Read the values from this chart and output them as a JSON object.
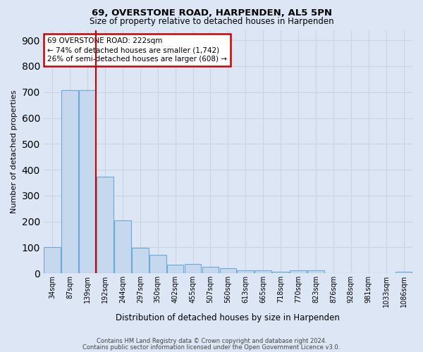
{
  "title1": "69, OVERSTONE ROAD, HARPENDEN, AL5 5PN",
  "title2": "Size of property relative to detached houses in Harpenden",
  "xlabel": "Distribution of detached houses by size in Harpenden",
  "ylabel": "Number of detached properties",
  "categories": [
    "34sqm",
    "87sqm",
    "139sqm",
    "192sqm",
    "244sqm",
    "297sqm",
    "350sqm",
    "402sqm",
    "455sqm",
    "507sqm",
    "560sqm",
    "613sqm",
    "665sqm",
    "718sqm",
    "770sqm",
    "823sqm",
    "876sqm",
    "928sqm",
    "981sqm",
    "1033sqm",
    "1086sqm"
  ],
  "values": [
    100,
    707,
    707,
    373,
    205,
    97,
    72,
    33,
    35,
    25,
    20,
    10,
    10,
    7,
    10,
    10,
    0,
    0,
    0,
    0,
    5
  ],
  "bar_color": "#c5d8ee",
  "bar_edge_color": "#6aaad4",
  "annotation_text": "69 OVERSTONE ROAD: 222sqm\n← 74% of detached houses are smaller (1,742)\n26% of semi-detached houses are larger (608) →",
  "annotation_box_color": "white",
  "annotation_box_edge_color": "#cc0000",
  "property_line_color": "#cc0000",
  "ylim": [
    0,
    940
  ],
  "yticks": [
    0,
    100,
    200,
    300,
    400,
    500,
    600,
    700,
    800,
    900
  ],
  "grid_color": "#c8d4e8",
  "background_color": "#dce6f5",
  "footer1": "Contains HM Land Registry data © Crown copyright and database right 2024.",
  "footer2": "Contains public sector information licensed under the Open Government Licence v3.0."
}
